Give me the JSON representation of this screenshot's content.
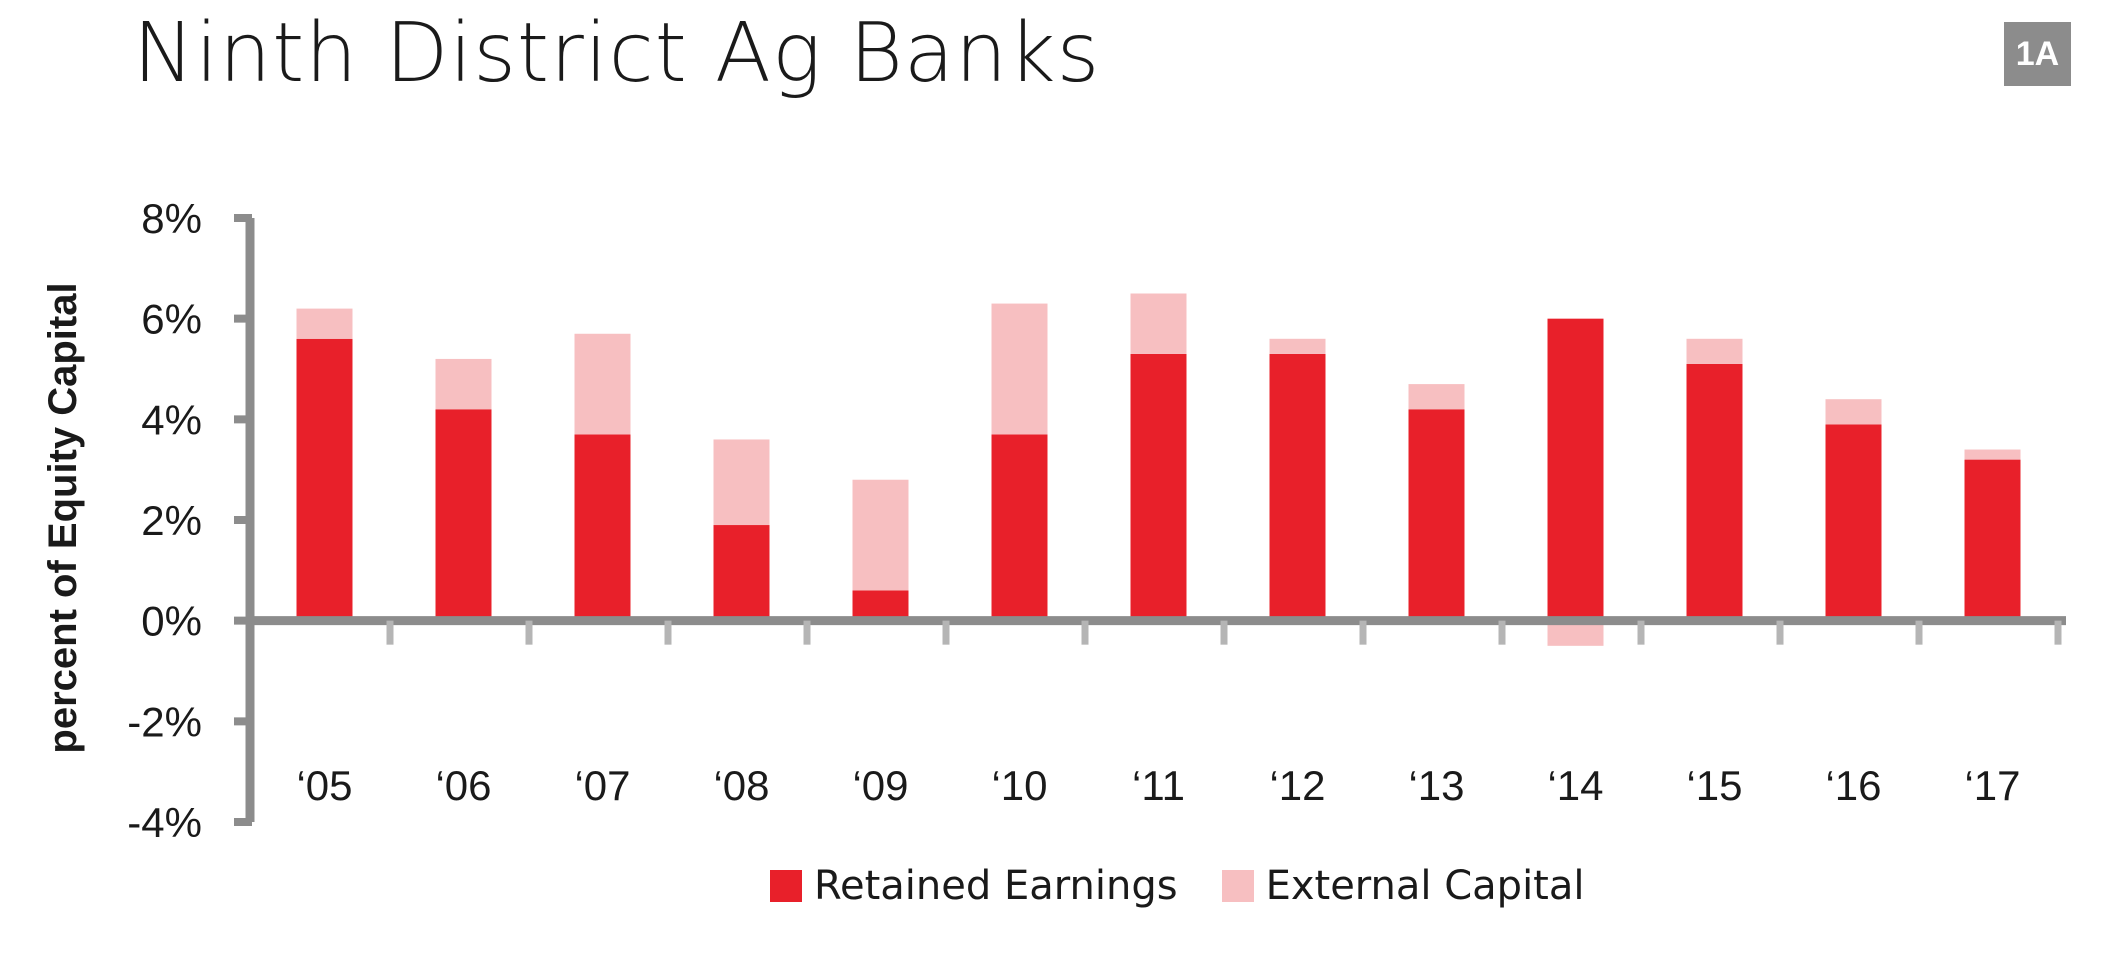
{
  "header": {
    "title": "Ninth District Ag Banks",
    "badge": "1A"
  },
  "colors": {
    "retained": "#e8202a",
    "external": "#f7bfc1",
    "axis": "#8c8c8c",
    "text": "#1a1a1a"
  },
  "chart_data": {
    "type": "bar",
    "stacked": true,
    "title": "Ninth District Ag Banks",
    "xlabel": "",
    "ylabel": "percent of Equity Capital",
    "ylim": [
      -4,
      8
    ],
    "yticks": [
      8,
      6,
      4,
      2,
      0,
      -2,
      -4
    ],
    "ytick_labels": [
      "8%",
      "6%",
      "4%",
      "2%",
      "0%",
      "-2%",
      "-4%"
    ],
    "categories": [
      "‘05",
      "‘06",
      "‘07",
      "‘08",
      "‘09",
      "‘10",
      "‘11",
      "‘12",
      "‘13",
      "‘14",
      "‘15",
      "‘16",
      "‘17"
    ],
    "series": [
      {
        "name": "Retained Earnings",
        "values": [
          5.6,
          4.2,
          3.7,
          1.9,
          0.6,
          3.7,
          5.3,
          5.3,
          4.2,
          6.0,
          5.1,
          3.9,
          3.2
        ]
      },
      {
        "name": "External Capital",
        "values": [
          0.6,
          1.0,
          2.0,
          1.7,
          2.2,
          2.6,
          1.2,
          0.3,
          0.5,
          -0.5,
          0.5,
          0.5,
          0.2
        ]
      }
    ],
    "legend": "bottom-center",
    "grid": false
  }
}
